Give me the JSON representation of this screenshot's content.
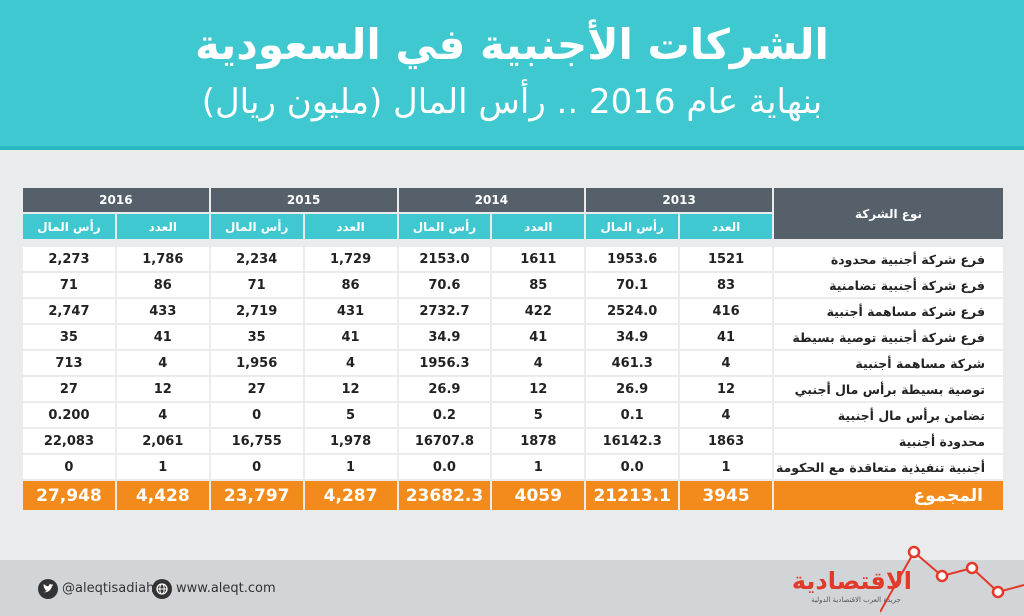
{
  "header": {
    "title": "الشركات الأجنبية في السعودية",
    "subtitle": "بنهاية عام 2016 .. رأس المال (مليون ريال)"
  },
  "table": {
    "type_header": "نوع الشركة",
    "years": [
      "2013",
      "2014",
      "2015",
      "2016"
    ],
    "sub_count": "العدد",
    "sub_capital": "رأس المال",
    "rows": [
      {
        "name": "فرع شركة أجنبية محدودة",
        "cells": [
          "1521",
          "1953.6",
          "1611",
          "2153.0",
          "1,729",
          "2,234",
          "1,786",
          "2,273"
        ]
      },
      {
        "name": "فرع شركة أجنبية تضامنية",
        "cells": [
          "83",
          "70.1",
          "85",
          "70.6",
          "86",
          "71",
          "86",
          "71"
        ]
      },
      {
        "name": "فرع شركة مساهمة أجنبية",
        "cells": [
          "416",
          "2524.0",
          "422",
          "2732.7",
          "431",
          "2,719",
          "433",
          "2,747"
        ]
      },
      {
        "name": "فرع شركة أجنبية توصية بسيطة",
        "cells": [
          "41",
          "34.9",
          "41",
          "34.9",
          "41",
          "35",
          "41",
          "35"
        ]
      },
      {
        "name": "شركة مساهمة أجنبية",
        "cells": [
          "4",
          "461.3",
          "4",
          "1956.3",
          "4",
          "1,956",
          "4",
          "713"
        ]
      },
      {
        "name": "توصية بسيطة برأس مال أجنبي",
        "cells": [
          "12",
          "26.9",
          "12",
          "26.9",
          "12",
          "27",
          "12",
          "27"
        ]
      },
      {
        "name": "تضامن برأس مال أجنبية",
        "cells": [
          "4",
          "0.1",
          "5",
          "0.2",
          "5",
          "0",
          "4",
          "0.200"
        ]
      },
      {
        "name": "محدودة أجنبية",
        "cells": [
          "1863",
          "16142.3",
          "1878",
          "16707.8",
          "1,978",
          "16,755",
          "2,061",
          "22,083"
        ]
      },
      {
        "name": "أجنبية تنفيذية متعاقدة مع الحكومة",
        "cells": [
          "1",
          "0.0",
          "1",
          "0.0",
          "1",
          "0",
          "1",
          "0"
        ]
      }
    ],
    "total": {
      "name": "المجموع",
      "cells": [
        "3945",
        "21213.1",
        "4059",
        "23682.3",
        "4,287",
        "23,797",
        "4,428",
        "27,948"
      ]
    }
  },
  "footer": {
    "twitter": "@aleqtisadiah",
    "website": "www.aleqt.com",
    "logo": "الاقتصادية",
    "tagline": "جريدة العرب الاقتصادية الدولية"
  },
  "colors": {
    "header": "#3fc8d0",
    "dark_header": "#55606a",
    "total": "#f28a1c",
    "logo_red": "#e2392a"
  }
}
